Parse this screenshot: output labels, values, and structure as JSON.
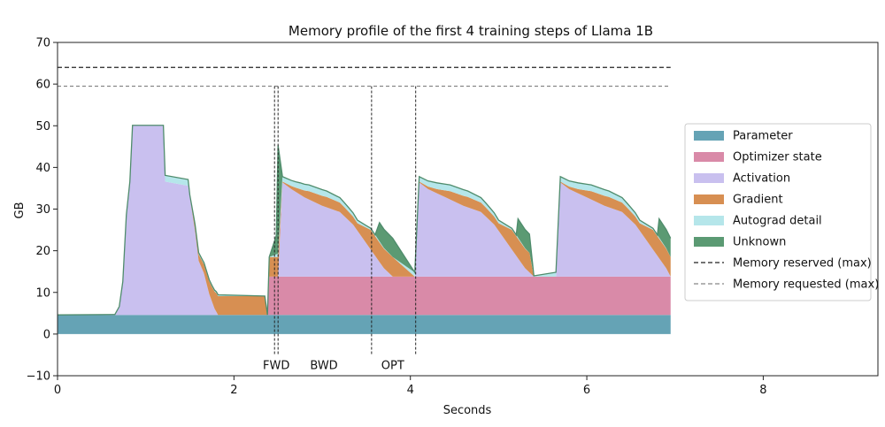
{
  "chart_data": {
    "type": "area",
    "title": "Memory profile of the first 4 training steps of Llama 1B",
    "xlabel": "Seconds",
    "ylabel": "GB",
    "xlim": [
      0,
      9.3
    ],
    "ylim": [
      -10,
      70
    ],
    "x_ticks": [
      0,
      2,
      4,
      6,
      8
    ],
    "y_ticks": [
      -10,
      0,
      10,
      20,
      30,
      40,
      50,
      60,
      70
    ],
    "grid": false,
    "legend_position": "right",
    "colors": {
      "Parameter": "#65a3b5",
      "Optimizer state": "#d98aa8",
      "Activation": "#c9c0ef",
      "Gradient": "#d78f52",
      "Autograd detail": "#b5e6ea",
      "Unknown": "#5b9a73",
      "outline": "#4f8c6c"
    },
    "series": [
      {
        "name": "Parameter",
        "points": [
          [
            0,
            4.6
          ],
          [
            6.95,
            4.6
          ]
        ]
      },
      {
        "name": "Optimizer state",
        "points": [
          [
            0,
            0
          ],
          [
            2.38,
            0
          ],
          [
            2.38,
            9.2
          ],
          [
            6.95,
            9.2
          ]
        ]
      },
      {
        "name": "Activation",
        "points": [
          [
            0,
            0
          ],
          [
            0.65,
            0.1
          ],
          [
            0.7,
            2
          ],
          [
            0.74,
            8
          ],
          [
            0.78,
            24
          ],
          [
            0.82,
            32
          ],
          [
            0.85,
            45.5
          ],
          [
            1.2,
            45.5
          ],
          [
            1.22,
            32
          ],
          [
            1.48,
            31
          ],
          [
            1.56,
            20
          ],
          [
            1.6,
            13
          ],
          [
            1.66,
            10
          ],
          [
            1.72,
            5
          ],
          [
            1.78,
            1.5
          ],
          [
            1.82,
            0
          ],
          [
            2.38,
            0
          ],
          [
            2.4,
            0
          ],
          [
            2.5,
            0
          ],
          [
            2.5,
            30
          ],
          [
            2.55,
            22.6
          ],
          [
            2.65,
            21
          ],
          [
            2.8,
            19
          ],
          [
            3.0,
            17
          ],
          [
            3.2,
            15.5
          ],
          [
            3.35,
            12.5
          ],
          [
            3.5,
            8
          ],
          [
            3.6,
            5
          ],
          [
            3.7,
            2
          ],
          [
            3.8,
            0
          ],
          [
            4.05,
            0
          ],
          [
            4.05,
            30
          ],
          [
            4.1,
            22.6
          ],
          [
            4.2,
            21
          ],
          [
            4.4,
            19
          ],
          [
            4.6,
            17
          ],
          [
            4.8,
            15.5
          ],
          [
            4.95,
            12.5
          ],
          [
            5.1,
            8
          ],
          [
            5.2,
            5
          ],
          [
            5.3,
            2
          ],
          [
            5.4,
            0
          ],
          [
            5.65,
            0
          ],
          [
            5.65,
            30
          ],
          [
            5.7,
            22.6
          ],
          [
            5.8,
            21
          ],
          [
            6.0,
            19
          ],
          [
            6.2,
            17
          ],
          [
            6.4,
            15.5
          ],
          [
            6.55,
            12.5
          ],
          [
            6.7,
            8
          ],
          [
            6.8,
            5
          ],
          [
            6.9,
            2
          ],
          [
            6.95,
            0
          ]
        ]
      },
      {
        "name": "Gradient",
        "points": [
          [
            0,
            0
          ],
          [
            1.5,
            0
          ],
          [
            1.55,
            1
          ],
          [
            1.65,
            2
          ],
          [
            1.75,
            3.5
          ],
          [
            1.8,
            4.5
          ],
          [
            2.35,
            4.5
          ],
          [
            2.38,
            0
          ],
          [
            2.4,
            4.7
          ],
          [
            2.5,
            4.7
          ],
          [
            2.5,
            0
          ],
          [
            2.55,
            0.2
          ],
          [
            2.7,
            1
          ],
          [
            2.85,
            2
          ],
          [
            3.05,
            2.5
          ],
          [
            3.25,
            2.2
          ],
          [
            3.4,
            1.8
          ],
          [
            3.55,
            4.7
          ],
          [
            3.8,
            4.7
          ],
          [
            3.8,
            0
          ],
          [
            4.05,
            0
          ],
          [
            4.1,
            0.2
          ],
          [
            4.3,
            1
          ],
          [
            4.45,
            2
          ],
          [
            4.65,
            2.5
          ],
          [
            4.85,
            2.2
          ],
          [
            5.0,
            1.8
          ],
          [
            5.15,
            4.7
          ],
          [
            5.35,
            4.7
          ],
          [
            5.35,
            0
          ],
          [
            5.65,
            0
          ],
          [
            5.7,
            0.2
          ],
          [
            5.9,
            1
          ],
          [
            6.05,
            2
          ],
          [
            6.25,
            2.5
          ],
          [
            6.45,
            2.2
          ],
          [
            6.6,
            1.8
          ],
          [
            6.75,
            4.7
          ],
          [
            6.95,
            4.7
          ]
        ]
      },
      {
        "name": "Autograd detail",
        "points": [
          [
            0,
            0
          ],
          [
            1.2,
            0
          ],
          [
            1.22,
            1.5
          ],
          [
            1.48,
            1.5
          ],
          [
            1.5,
            0.5
          ],
          [
            2.4,
            0
          ],
          [
            2.55,
            1.2
          ],
          [
            2.75,
            1.5
          ],
          [
            3.0,
            1.5
          ],
          [
            3.3,
            1
          ],
          [
            3.5,
            0.5
          ],
          [
            3.8,
            0
          ],
          [
            4.1,
            1.2
          ],
          [
            4.3,
            1.5
          ],
          [
            4.6,
            1.5
          ],
          [
            4.9,
            1
          ],
          [
            5.1,
            0.5
          ],
          [
            5.35,
            0
          ],
          [
            5.7,
            1.2
          ],
          [
            5.9,
            1.5
          ],
          [
            6.2,
            1.5
          ],
          [
            6.5,
            1
          ],
          [
            6.7,
            0.5
          ],
          [
            6.95,
            0
          ]
        ]
      },
      {
        "name": "Unknown",
        "points": [
          [
            0,
            0
          ],
          [
            2.38,
            0
          ],
          [
            2.4,
            0
          ],
          [
            2.4,
            4.5
          ],
          [
            2.48,
            4.5
          ],
          [
            2.5,
            26
          ],
          [
            2.55,
            0
          ],
          [
            3.6,
            0
          ],
          [
            3.65,
            4.5
          ],
          [
            3.8,
            4.5
          ],
          [
            3.8,
            0
          ],
          [
            4.05,
            0
          ],
          [
            4.05,
            26
          ],
          [
            4.1,
            0
          ],
          [
            5.2,
            0
          ],
          [
            5.22,
            4.5
          ],
          [
            5.35,
            4.5
          ],
          [
            5.35,
            0
          ],
          [
            5.65,
            0
          ],
          [
            5.65,
            26
          ],
          [
            5.7,
            0
          ],
          [
            6.8,
            0
          ],
          [
            6.82,
            4.5
          ],
          [
            6.95,
            4.5
          ]
        ]
      }
    ],
    "reference_lines": [
      {
        "name": "Memory reserved (max)",
        "y": 64,
        "color": "#222222",
        "dash": "dark"
      },
      {
        "name": "Memory requested (max)",
        "y": 59.5,
        "color": "#888888",
        "dash": "light"
      }
    ],
    "annotations": [
      {
        "text": "FWD",
        "x": 2.48
      },
      {
        "text": "BWD",
        "x": 3.02
      },
      {
        "text": "OPT",
        "x": 3.8
      }
    ],
    "annotation_lines": [
      2.46,
      2.5,
      3.56,
      4.06
    ],
    "legend": [
      {
        "label": "Parameter",
        "kind": "patch"
      },
      {
        "label": "Optimizer state",
        "kind": "patch"
      },
      {
        "label": "Activation",
        "kind": "patch"
      },
      {
        "label": "Gradient",
        "kind": "patch"
      },
      {
        "label": "Autograd detail",
        "kind": "patch"
      },
      {
        "label": "Unknown",
        "kind": "patch"
      },
      {
        "label": "Memory reserved (max)",
        "kind": "line"
      },
      {
        "label": "Memory requested (max)",
        "kind": "line"
      }
    ]
  }
}
